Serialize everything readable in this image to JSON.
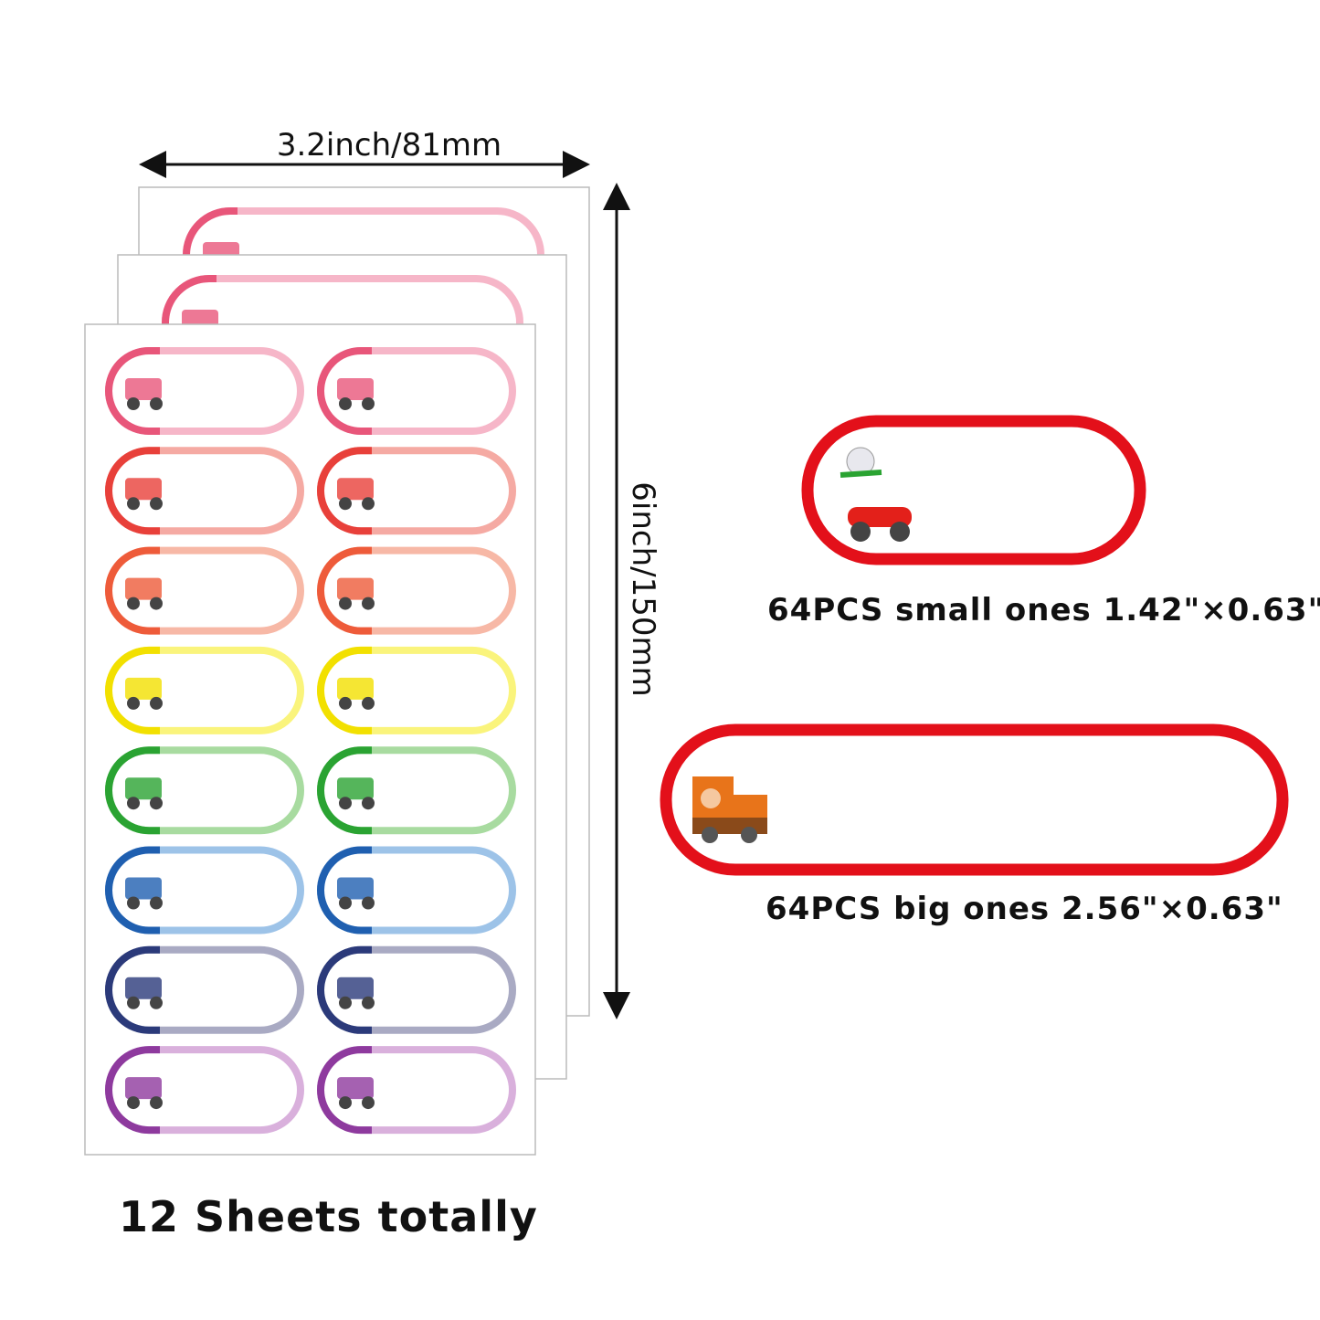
{
  "width_label": "3.2inch/81mm",
  "height_label": "6inch/150mm",
  "small_caption": "64PCS small ones 1.42\"×0.63\"",
  "big_caption": "64PCS big ones 2.56\"×0.63\"",
  "sheets_caption": "12 Sheets totally"
}
